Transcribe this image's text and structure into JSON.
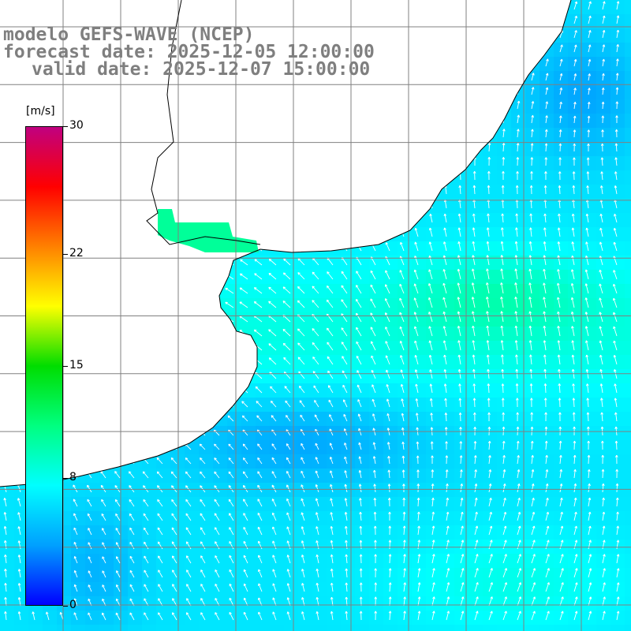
{
  "title": {
    "line1": "modelo GEFS-WAVE (NCEP)",
    "line2": "forecast date: 2025-12-05 12:00:00",
    "line3": "valid date: 2025-12-07 15:00:00"
  },
  "colorbar": {
    "units": "[m/s]",
    "ticks": [
      {
        "label": "30",
        "value": 30
      },
      {
        "label": "22",
        "value": 22
      },
      {
        "label": "15",
        "value": 15
      },
      {
        "label": "8",
        "value": 8
      },
      {
        "label": "0",
        "value": 0
      }
    ],
    "colors": [
      "#0000ff",
      "#00a0ff",
      "#00ffff",
      "#00ff80",
      "#00dd00",
      "#ffff00",
      "#ff8000",
      "#ff0000",
      "#c00080"
    ]
  },
  "map": {
    "field": "wind speed and direction",
    "region": "South Atlantic, Rio de la Plata",
    "colors": {
      "land": "#ffffff",
      "grid": "#808080",
      "coast": "#000000",
      "arrow": "#ffffff"
    }
  }
}
